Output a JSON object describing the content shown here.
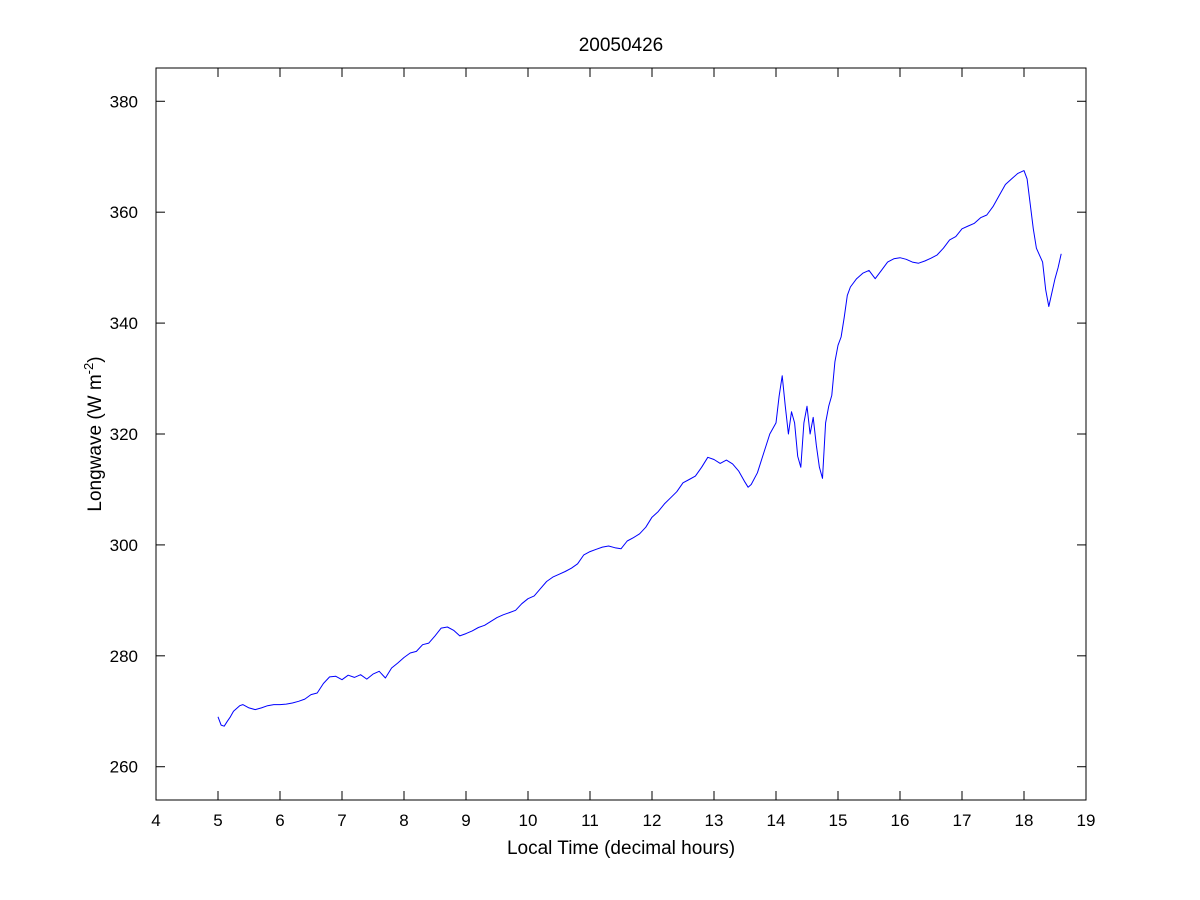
{
  "chart_data": {
    "type": "line",
    "title": "20050426",
    "xlabel": "Local Time (decimal hours)",
    "ylabel": {
      "base": "Longwave (W m",
      "sup": "-2",
      "end": ")"
    },
    "xlim": [
      4,
      19
    ],
    "ylim": [
      254,
      386
    ],
    "xticks": [
      4,
      5,
      6,
      7,
      8,
      9,
      10,
      11,
      12,
      13,
      14,
      15,
      16,
      17,
      18,
      19
    ],
    "yticks": [
      260,
      280,
      300,
      320,
      340,
      360,
      380
    ],
    "grid": false,
    "line_color": "#0000ff",
    "series": [
      {
        "x": [
          5.0,
          5.05,
          5.1,
          5.15,
          5.2,
          5.25,
          5.3,
          5.35,
          5.4,
          5.5,
          5.6,
          5.7,
          5.8,
          5.9,
          6.0,
          6.1,
          6.2,
          6.3,
          6.4,
          6.5,
          6.6,
          6.7,
          6.8,
          6.9,
          7.0,
          7.1,
          7.2,
          7.3,
          7.4,
          7.5,
          7.6,
          7.7,
          7.8,
          7.9,
          8.0,
          8.1,
          8.2,
          8.3,
          8.4,
          8.5,
          8.6,
          8.7,
          8.8,
          8.9,
          9.0,
          9.1,
          9.2,
          9.3,
          9.4,
          9.5,
          9.6,
          9.7,
          9.8,
          9.9,
          10.0,
          10.1,
          10.2,
          10.3,
          10.4,
          10.5,
          10.6,
          10.7,
          10.8,
          10.9,
          11.0,
          11.1,
          11.2,
          11.3,
          11.4,
          11.5,
          11.6,
          11.7,
          11.8,
          11.9,
          12.0,
          12.1,
          12.2,
          12.3,
          12.4,
          12.5,
          12.6,
          12.7,
          12.8,
          12.9,
          13.0,
          13.1,
          13.2,
          13.3,
          13.4,
          13.5,
          13.55,
          13.6,
          13.7,
          13.8,
          13.9,
          14.0,
          14.05,
          14.1,
          14.15,
          14.2,
          14.25,
          14.3,
          14.35,
          14.4,
          14.45,
          14.5,
          14.55,
          14.6,
          14.65,
          14.7,
          14.75,
          14.8,
          14.85,
          14.9,
          14.95,
          15.0,
          15.05,
          15.1,
          15.15,
          15.2,
          15.3,
          15.4,
          15.5,
          15.6,
          15.7,
          15.8,
          15.9,
          16.0,
          16.1,
          16.2,
          16.3,
          16.4,
          16.5,
          16.6,
          16.7,
          16.8,
          16.9,
          17.0,
          17.1,
          17.2,
          17.3,
          17.4,
          17.5,
          17.6,
          17.7,
          17.8,
          17.9,
          18.0,
          18.05,
          18.1,
          18.15,
          18.2,
          18.3,
          18.35,
          18.4,
          18.45,
          18.5,
          18.55,
          18.6
        ],
        "y": [
          269,
          267.5,
          267.3,
          268.2,
          269,
          270,
          270.5,
          271,
          271.2,
          270.6,
          270.3,
          270.6,
          271,
          271.2,
          271.2,
          271.3,
          271.5,
          271.8,
          272.2,
          273,
          273.3,
          275.0,
          276.2,
          276.3,
          275.7,
          276.5,
          276.1,
          276.6,
          275.8,
          276.7,
          277.2,
          276.0,
          277.8,
          278.7,
          279.7,
          280.5,
          280.8,
          282.0,
          282.3,
          283.6,
          285.0,
          285.2,
          284.6,
          283.6,
          284.0,
          284.5,
          285.1,
          285.5,
          286.2,
          286.9,
          287.4,
          287.8,
          288.2,
          289.4,
          290.3,
          290.8,
          292.1,
          293.4,
          294.2,
          294.7,
          295.2,
          295.8,
          296.6,
          298.2,
          298.8,
          299.2,
          299.6,
          299.8,
          299.5,
          299.3,
          300.7,
          301.3,
          302.0,
          303.2,
          305.0,
          306.0,
          307.4,
          308.5,
          309.6,
          311.2,
          311.8,
          312.4,
          314.0,
          315.8,
          315.4,
          314.7,
          315.3,
          314.6,
          313.3,
          311.3,
          310.4,
          310.9,
          313.0,
          316.5,
          320.0,
          322.0,
          326.8,
          330.5,
          325.0,
          320.0,
          324.0,
          322.0,
          316.0,
          314.0,
          322.0,
          325.0,
          320.0,
          323.0,
          318.0,
          314.0,
          312.0,
          322.0,
          325.0,
          327.0,
          333.0,
          336.0,
          337.5,
          341.0,
          345.0,
          346.5,
          348.0,
          349.0,
          349.5,
          348.0,
          349.5,
          351.0,
          351.6,
          351.8,
          351.5,
          351.0,
          350.8,
          351.2,
          351.7,
          352.3,
          353.5,
          355.0,
          355.6,
          357.0,
          357.5,
          358.0,
          359.0,
          359.5,
          361.0,
          363.0,
          365.0,
          366.0,
          367.0,
          367.5,
          366.0,
          361.5,
          357.0,
          353.5,
          351.0,
          346.0,
          343.0,
          345.5,
          348.0,
          350.0,
          352.5
        ]
      }
    ]
  }
}
